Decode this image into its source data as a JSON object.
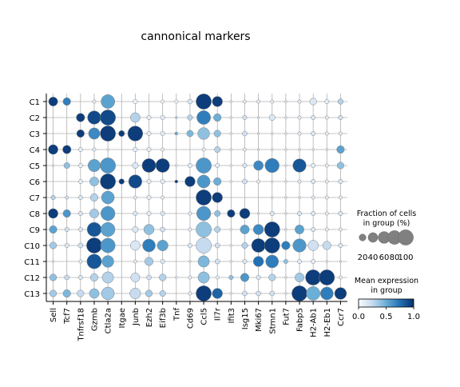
{
  "chart_data": {
    "type": "dotplot",
    "title": "cannonical markers",
    "rows": [
      "C1",
      "C2",
      "C3",
      "C4",
      "C5",
      "C6",
      "C7",
      "C8",
      "C9",
      "C10",
      "C11",
      "C12",
      "C13"
    ],
    "genes": [
      "Sell",
      "Tcf7",
      "Tnfrsf18",
      "Gzmb",
      "Ctla2a",
      "Itgae",
      "Junb",
      "Ezh2",
      "Eif3b",
      "Tnf",
      "Cd69",
      "Ccl5",
      "Il7r",
      "Ifit3",
      "Isg15",
      "Mki67",
      "Stmn1",
      "Fut7",
      "Fabp5",
      "H2-Ab1",
      "H2-Eb1",
      "Ccr7"
    ],
    "frac_pct": [
      [
        35,
        25,
        0,
        5,
        80,
        0,
        8,
        0,
        5,
        5,
        10,
        100,
        45,
        2,
        5,
        5,
        5,
        2,
        5,
        20,
        8,
        12
      ],
      [
        0,
        0,
        30,
        75,
        100,
        0,
        40,
        8,
        8,
        2,
        12,
        80,
        25,
        2,
        8,
        2,
        15,
        2,
        5,
        8,
        5,
        8
      ],
      [
        0,
        0,
        25,
        55,
        100,
        15,
        95,
        8,
        8,
        4,
        18,
        60,
        20,
        2,
        10,
        2,
        2,
        2,
        5,
        8,
        5,
        5
      ],
      [
        40,
        30,
        8,
        5,
        2,
        0,
        8,
        8,
        5,
        0,
        0,
        5,
        15,
        2,
        5,
        2,
        2,
        2,
        2,
        2,
        2,
        25
      ],
      [
        2,
        15,
        8,
        65,
        100,
        0,
        15,
        80,
        80,
        2,
        8,
        100,
        8,
        2,
        8,
        40,
        85,
        2,
        75,
        8,
        5,
        20
      ],
      [
        0,
        0,
        8,
        35,
        100,
        12,
        75,
        8,
        8,
        4,
        45,
        70,
        25,
        2,
        10,
        5,
        2,
        2,
        5,
        8,
        5,
        8
      ],
      [
        8,
        5,
        8,
        25,
        70,
        0,
        5,
        8,
        5,
        0,
        0,
        100,
        45,
        0,
        0,
        0,
        2,
        2,
        2,
        5,
        5,
        5
      ],
      [
        40,
        25,
        8,
        35,
        85,
        0,
        8,
        8,
        8,
        0,
        5,
        85,
        15,
        25,
        45,
        2,
        8,
        2,
        8,
        8,
        5,
        8
      ],
      [
        25,
        8,
        8,
        85,
        85,
        0,
        15,
        45,
        10,
        0,
        5,
        100,
        15,
        2,
        35,
        45,
        100,
        2,
        35,
        8,
        5,
        5
      ],
      [
        20,
        8,
        10,
        100,
        90,
        0,
        40,
        70,
        50,
        0,
        8,
        100,
        10,
        2,
        15,
        80,
        100,
        30,
        75,
        45,
        30,
        8
      ],
      [
        2,
        0,
        5,
        90,
        60,
        0,
        5,
        30,
        8,
        0,
        2,
        55,
        10,
        2,
        8,
        45,
        70,
        8,
        8,
        8,
        2,
        2
      ],
      [
        20,
        10,
        8,
        25,
        55,
        0,
        35,
        10,
        20,
        2,
        5,
        55,
        5,
        8,
        30,
        8,
        20,
        2,
        35,
        100,
        100,
        5
      ],
      [
        20,
        25,
        20,
        40,
        70,
        0,
        50,
        20,
        15,
        0,
        5,
        100,
        45,
        2,
        10,
        10,
        10,
        2,
        100,
        80,
        70,
        60
      ]
    ],
    "expr": [
      [
        0.95,
        0.7,
        0,
        0.1,
        0.55,
        0,
        0.05,
        0,
        0.05,
        0.05,
        0.15,
        0.95,
        0.95,
        0.05,
        0.1,
        0.1,
        0.1,
        0.05,
        0.1,
        0.15,
        0.1,
        0.3
      ],
      [
        0,
        0,
        0.95,
        0.9,
        0.9,
        0,
        0.3,
        0.1,
        0.1,
        0.3,
        0.3,
        0.7,
        0.5,
        0.05,
        0.2,
        0.05,
        0.15,
        0.05,
        0.1,
        0.15,
        0.1,
        0.2
      ],
      [
        0,
        0,
        0.95,
        0.65,
        0.95,
        0.95,
        0.95,
        0.1,
        0.1,
        0.5,
        0.45,
        0.4,
        0.4,
        0.05,
        0.2,
        0.05,
        0.05,
        0.05,
        0.1,
        0.15,
        0.1,
        0.1
      ],
      [
        0.95,
        0.95,
        0.1,
        0.1,
        0.05,
        0,
        0.1,
        0.1,
        0.1,
        0,
        0,
        0.1,
        0.3,
        0.05,
        0.1,
        0.05,
        0.05,
        0.05,
        0.05,
        0.05,
        0.05,
        0.55
      ],
      [
        0.05,
        0.4,
        0.1,
        0.55,
        0.6,
        0,
        0.15,
        0.95,
        0.95,
        0.05,
        0.1,
        0.6,
        0.1,
        0.05,
        0.15,
        0.65,
        0.7,
        0.05,
        0.85,
        0.1,
        0.1,
        0.4
      ],
      [
        0,
        0,
        0.1,
        0.4,
        0.95,
        0.95,
        0.9,
        0.1,
        0.1,
        0.95,
        0.95,
        0.6,
        0.5,
        0.05,
        0.2,
        0.1,
        0.05,
        0.05,
        0.1,
        0.15,
        0.1,
        0.15
      ],
      [
        0.3,
        0.2,
        0.15,
        0.3,
        0.55,
        0,
        0.1,
        0.1,
        0.1,
        0,
        0,
        0.95,
        0.95,
        0,
        0,
        0,
        0.05,
        0.05,
        0.05,
        0.1,
        0.1,
        0.1
      ],
      [
        0.95,
        0.6,
        0.15,
        0.35,
        0.6,
        0,
        0.15,
        0.1,
        0.15,
        0,
        0.1,
        0.6,
        0.4,
        0.95,
        0.95,
        0.05,
        0.15,
        0.05,
        0.15,
        0.15,
        0.1,
        0.15
      ],
      [
        0.55,
        0.2,
        0.15,
        0.85,
        0.55,
        0,
        0.15,
        0.4,
        0.2,
        0,
        0.1,
        0.4,
        0.3,
        0.05,
        0.55,
        0.65,
        0.95,
        0.05,
        0.55,
        0.15,
        0.1,
        0.1
      ],
      [
        0.35,
        0.15,
        0.2,
        0.95,
        0.6,
        0,
        0.15,
        0.7,
        0.55,
        0,
        0.15,
        0.25,
        0.2,
        0.05,
        0.3,
        0.95,
        0.95,
        0.7,
        0.6,
        0.2,
        0.25,
        0.15
      ],
      [
        0.05,
        0,
        0.1,
        0.85,
        0.55,
        0,
        0.1,
        0.35,
        0.15,
        0,
        0.05,
        0.45,
        0.2,
        0.05,
        0.15,
        0.75,
        0.7,
        0.4,
        0.1,
        0.1,
        0.05,
        0.05
      ],
      [
        0.4,
        0.25,
        0.15,
        0.3,
        0.3,
        0,
        0.2,
        0.2,
        0.3,
        0.05,
        0.1,
        0.4,
        0.1,
        0.4,
        0.6,
        0.15,
        0.3,
        0.05,
        0.35,
        0.95,
        0.95,
        0.1
      ],
      [
        0.35,
        0.45,
        0.25,
        0.4,
        0.35,
        0,
        0.25,
        0.35,
        0.3,
        0,
        0.1,
        0.95,
        0.8,
        0.05,
        0.2,
        0.2,
        0.2,
        0.05,
        0.95,
        0.5,
        0.7,
        0.95
      ]
    ],
    "legend": {
      "size_title": "Fraction of cells\nin group (%)",
      "size_ticks": [
        "20",
        "40",
        "60",
        "80",
        "100"
      ],
      "color_title": "Mean expression\nin group",
      "color_ticks": [
        "0.0",
        "0.5",
        "1.0"
      ]
    },
    "colormap": [
      "#f7fbff",
      "#c6dbef",
      "#6baed6",
      "#2171b5",
      "#08306b"
    ]
  }
}
